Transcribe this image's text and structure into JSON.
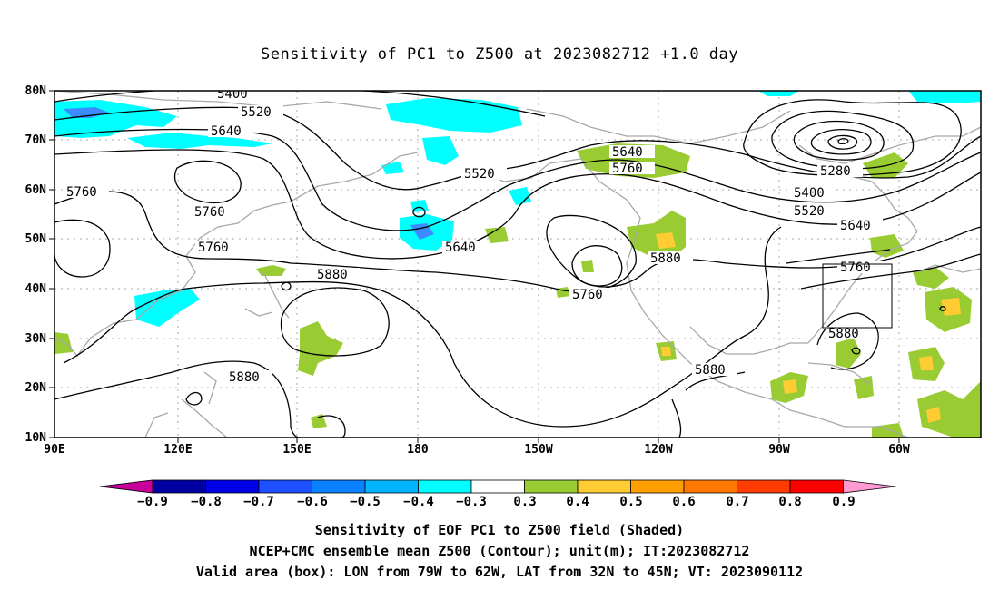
{
  "title": "Sensitivity of PC1 to Z500 at 2023082712 +1.0 day",
  "map": {
    "lat_labels": [
      "80N",
      "70N",
      "60N",
      "50N",
      "40N",
      "30N",
      "20N",
      "10N"
    ],
    "lon_labels": [
      "90E",
      "120E",
      "150E",
      "180",
      "150W",
      "120W",
      "90W",
      "60W"
    ],
    "contour_labels": [
      {
        "text": "5400"
      },
      {
        "text": "5520"
      },
      {
        "text": "5640"
      },
      {
        "text": "5760"
      },
      {
        "text": "5760"
      },
      {
        "text": "5760"
      },
      {
        "text": "5520"
      },
      {
        "text": "5640"
      },
      {
        "text": "5880"
      },
      {
        "text": "5640"
      },
      {
        "text": "5760"
      },
      {
        "text": "5760"
      },
      {
        "text": "5880"
      },
      {
        "text": "5280"
      },
      {
        "text": "5400"
      },
      {
        "text": "5520"
      },
      {
        "text": "5640"
      },
      {
        "text": "5760"
      },
      {
        "text": "5880"
      },
      {
        "text": "5880"
      },
      {
        "text": "5880"
      }
    ],
    "valid_area": {
      "lon": [
        "79W",
        "62W"
      ],
      "lat": [
        "32N",
        "45N"
      ]
    },
    "colors": {
      "contour": "#000000",
      "coast": "#a8a8a8",
      "grid": "#a8a8a8",
      "neg_shade": "#00ffff",
      "neg_strong": "#00c8ff",
      "neg_core": "#3c8cff",
      "pos_shade": "#99cc33",
      "pos_strong": "#ffcc33"
    }
  },
  "colorbar": {
    "labels": [
      "−0.9",
      "−0.8",
      "−0.7",
      "−0.6",
      "−0.5",
      "−0.4",
      "−0.3",
      "0.3",
      "0.4",
      "0.5",
      "0.6",
      "0.7",
      "0.8",
      "0.9"
    ],
    "colors": [
      "#0000a0",
      "#0000e6",
      "#1e50ff",
      "#0a82ff",
      "#00b4ff",
      "#00ffff",
      "#ffffff",
      "#99cc33",
      "#ffcc33",
      "#ffa000",
      "#ff7800",
      "#ff3c00",
      "#ff0000"
    ],
    "end_low": "#c8009a",
    "end_high": "#ff9ad2"
  },
  "captions": {
    "line1": "Sensitivity of EOF PC1 to Z500 field (Shaded)",
    "line2": "NCEP+CMC ensemble mean Z500 (Contour); unit(m); IT:2023082712",
    "line3": "Valid area (box): LON from 79W to 62W, LAT from 32N to 45N; VT: 2023090112"
  }
}
